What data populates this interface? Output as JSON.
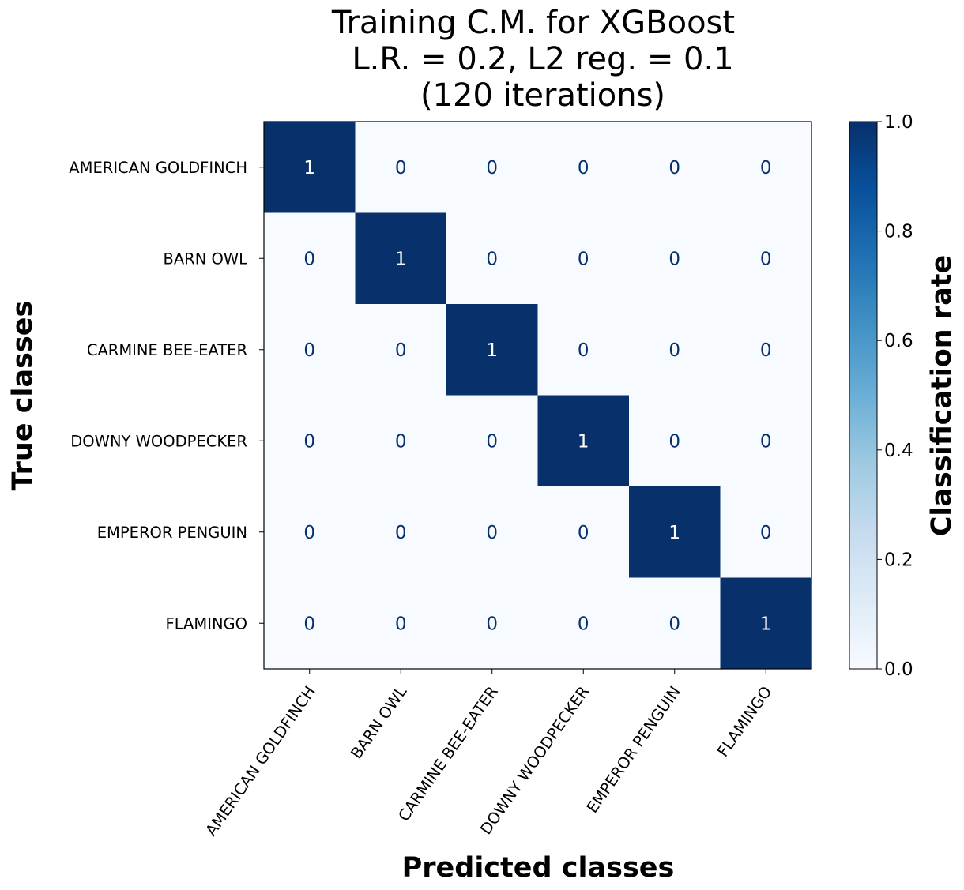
{
  "chart_data": {
    "type": "heatmap",
    "title_lines": [
      "Training C.M. for XGBoost",
      "L.R. = 0.2, L2 reg. = 0.1",
      "(120 iterations)"
    ],
    "xlabel": "Predicted classes",
    "ylabel": "True classes",
    "colorbar_label": "Classification rate",
    "classes": [
      "AMERICAN GOLDFINCH",
      "BARN OWL",
      "CARMINE BEE-EATER",
      "DOWNY WOODPECKER",
      "EMPEROR PENGUIN",
      "FLAMINGO"
    ],
    "values": [
      [
        1,
        0,
        0,
        0,
        0,
        0
      ],
      [
        0,
        1,
        0,
        0,
        0,
        0
      ],
      [
        0,
        0,
        1,
        0,
        0,
        0
      ],
      [
        0,
        0,
        0,
        1,
        0,
        0
      ],
      [
        0,
        0,
        0,
        0,
        1,
        0
      ],
      [
        0,
        0,
        0,
        0,
        0,
        1
      ]
    ],
    "cell_labels": [
      [
        "1",
        "0",
        "0",
        "0",
        "0",
        "0"
      ],
      [
        "0",
        "1",
        "0",
        "0",
        "0",
        "0"
      ],
      [
        "0",
        "0",
        "1",
        "0",
        "0",
        "0"
      ],
      [
        "0",
        "0",
        "0",
        "1",
        "0",
        "0"
      ],
      [
        "0",
        "0",
        "0",
        "0",
        "1",
        "0"
      ],
      [
        "0",
        "0",
        "0",
        "0",
        "0",
        "1"
      ]
    ],
    "colorbar_range": [
      0,
      1
    ],
    "colorbar_ticks": [
      "0.0",
      "0.2",
      "0.4",
      "0.6",
      "0.8",
      "1.0"
    ],
    "colormap": "Blues",
    "colors": {
      "low": "#f7fbff",
      "high": "#08306b",
      "text_on_low": "#08306b",
      "text_on_high": "#ffffff"
    }
  }
}
